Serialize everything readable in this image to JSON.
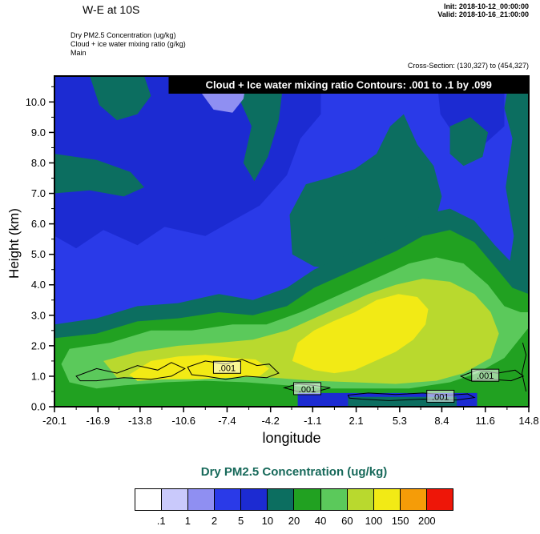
{
  "header": {
    "title": "W-E at 10S",
    "init": "Init: 2018-10-12_00:00:00",
    "valid": "Valid: 2018-10-16_21:00:00",
    "field_lines": [
      "Dry PM2.5 Concentration   (ug/kg)",
      "Cloud + ice water mixing ratio   (g/kg)",
      "Main"
    ],
    "cross_section": "Cross-Section: (130,327) to (454,327)"
  },
  "chart_data": {
    "type": "heatmap",
    "title_banner": "Cloud + Ice water mixing ratio Contours: .001 to .1 by .099",
    "fill_field": "Dry PM2.5 Concentration (ug/kg)",
    "line_field": "Cloud + Ice water mixing ratio (g/kg)",
    "xlabel": "longitude",
    "ylabel": "Height (km)",
    "xlim": [
      -20.1,
      14.8
    ],
    "ylim": [
      0,
      10.85
    ],
    "x_tick_labels": [
      "-20.1",
      "-16.9",
      "-13.8",
      "-10.6",
      "-7.4",
      "-4.2",
      "-1.1",
      "2.1",
      "5.3",
      "8.4",
      "11.6",
      "14.8"
    ],
    "y_tick_labels": [
      "0.0",
      "1.0",
      "2.0",
      "3.0",
      "4.0",
      "5.0",
      "6.0",
      "7.0",
      "8.0",
      "9.0",
      "10.0"
    ],
    "fill_levels": [
      0.1,
      1,
      2,
      5,
      10,
      20,
      40,
      60,
      100,
      150,
      200
    ],
    "palette": [
      "#ffffff",
      "#c9c9fb",
      "#8f8ff2",
      "#2a3ae8",
      "#1c2bd2",
      "#0c6e60",
      "#21a121",
      "#5bc95b",
      "#b9d92e",
      "#f2ea15",
      "#f59c08",
      "#ee1608"
    ],
    "background_ci": 3,
    "line_contour_levels": [
      0.001,
      0.1
    ],
    "contour_label": ".001",
    "contour_label_positions": [
      [
        -7.4,
        1.28
      ],
      [
        -1.5,
        0.58
      ],
      [
        8.3,
        0.33
      ],
      [
        11.6,
        1.02
      ]
    ],
    "banner_start_lon": -11.7,
    "regions": [
      {
        "ci": 4,
        "pts": [
          [
            -20.1,
            10.85
          ],
          [
            -0.5,
            10.85
          ],
          [
            -0.5,
            9.6
          ],
          [
            -2,
            8.8
          ],
          [
            -3,
            7.6
          ],
          [
            -5,
            6.6
          ],
          [
            -7,
            6.1
          ],
          [
            -9,
            5.6
          ],
          [
            -12,
            5.9
          ],
          [
            -14,
            5.3
          ],
          [
            -16.5,
            5.8
          ],
          [
            -18.5,
            5.2
          ],
          [
            -20.1,
            5.6
          ]
        ]
      },
      {
        "ci": 4,
        "pts": [
          [
            8,
            10.85
          ],
          [
            13,
            10.85
          ],
          [
            13,
            9.2
          ],
          [
            11.5,
            8.6
          ],
          [
            9.5,
            8.8
          ],
          [
            8.3,
            9.6
          ]
        ]
      },
      {
        "ci": 5,
        "pts": [
          [
            -17.5,
            10.85
          ],
          [
            -13.5,
            10.85
          ],
          [
            -13,
            10.2
          ],
          [
            -14,
            9.6
          ],
          [
            -15.5,
            9.4
          ],
          [
            -16.8,
            9.9
          ]
        ]
      },
      {
        "ci": 5,
        "pts": [
          [
            -20.1,
            8.3
          ],
          [
            -17,
            8.1
          ],
          [
            -14.5,
            7.7
          ],
          [
            -13.5,
            7.2
          ],
          [
            -15,
            6.9
          ],
          [
            -17.5,
            7.1
          ],
          [
            -20.1,
            7.0
          ]
        ]
      },
      {
        "ci": 5,
        "pts": [
          [
            -6.2,
            10.85
          ],
          [
            -3.2,
            10.85
          ],
          [
            -3.6,
            9.4
          ],
          [
            -4.4,
            8.2
          ],
          [
            -5.4,
            7.4
          ],
          [
            -6.2,
            8.0
          ],
          [
            -5.6,
            9.2
          ],
          [
            -6.4,
            10.0
          ]
        ]
      },
      {
        "ci": 5,
        "pts": [
          [
            -2.6,
            5.0
          ],
          [
            -1,
            4.6
          ],
          [
            1,
            4.5
          ],
          [
            3,
            4.8
          ],
          [
            5,
            5.2
          ],
          [
            6.5,
            5.3
          ],
          [
            7.8,
            5.9
          ],
          [
            8.4,
            6.9
          ],
          [
            7.8,
            7.9
          ],
          [
            6.6,
            8.6
          ],
          [
            5.6,
            9.6
          ],
          [
            4.6,
            9.2
          ],
          [
            3.6,
            8.3
          ],
          [
            2,
            7.8
          ],
          [
            0,
            7.5
          ],
          [
            -1.6,
            7.3
          ],
          [
            -2.8,
            6.3
          ]
        ]
      },
      {
        "ci": 5,
        "pts": [
          [
            9,
            9.2
          ],
          [
            10.5,
            9.5
          ],
          [
            11.8,
            9.0
          ],
          [
            11.4,
            8.2
          ],
          [
            10,
            7.9
          ],
          [
            9.0,
            8.3
          ]
        ]
      },
      {
        "ci": 5,
        "pts": [
          [
            13.4,
            10.85
          ],
          [
            14.8,
            10.85
          ],
          [
            14.8,
            2.8
          ],
          [
            13.6,
            3.0
          ],
          [
            13.2,
            4.2
          ],
          [
            13.7,
            5.6
          ],
          [
            13.1,
            7.2
          ],
          [
            13.6,
            8.8
          ],
          [
            13.0,
            9.8
          ]
        ]
      },
      {
        "ci": 5,
        "pts": [
          [
            -20.1,
            2.7
          ],
          [
            -17,
            2.9
          ],
          [
            -14,
            3.3
          ],
          [
            -11,
            3.4
          ],
          [
            -8,
            3.7
          ],
          [
            -5.5,
            3.5
          ],
          [
            -3,
            3.9
          ],
          [
            -1,
            4.5
          ],
          [
            1,
            4.9
          ],
          [
            3,
            5.3
          ],
          [
            5,
            5.7
          ],
          [
            7,
            6.3
          ],
          [
            9,
            6.5
          ],
          [
            10.8,
            6.1
          ],
          [
            12.3,
            5.3
          ],
          [
            13.6,
            4.7
          ],
          [
            14.8,
            4.5
          ],
          [
            14.8,
            0
          ],
          [
            -20.1,
            0
          ]
        ]
      },
      {
        "ci": 6,
        "pts": [
          [
            -20.1,
            2.25
          ],
          [
            -17,
            2.4
          ],
          [
            -14,
            2.8
          ],
          [
            -11,
            2.9
          ],
          [
            -8,
            3.1
          ],
          [
            -5.5,
            3.0
          ],
          [
            -3,
            3.3
          ],
          [
            -1,
            3.9
          ],
          [
            1,
            4.3
          ],
          [
            3,
            4.7
          ],
          [
            5,
            5.1
          ],
          [
            7,
            5.6
          ],
          [
            9,
            5.8
          ],
          [
            10.8,
            5.4
          ],
          [
            12.3,
            4.6
          ],
          [
            13.6,
            3.9
          ],
          [
            14.8,
            3.7
          ],
          [
            14.8,
            0
          ],
          [
            -20.1,
            0
          ]
        ]
      },
      {
        "ci": 7,
        "pts": [
          [
            -19,
            1.9
          ],
          [
            -16,
            2.1
          ],
          [
            -13,
            2.5
          ],
          [
            -10,
            2.5
          ],
          [
            -7,
            2.7
          ],
          [
            -4.5,
            2.7
          ],
          [
            -2,
            3.1
          ],
          [
            0,
            3.5
          ],
          [
            2,
            3.9
          ],
          [
            4,
            4.3
          ],
          [
            6,
            4.7
          ],
          [
            8,
            4.9
          ],
          [
            10,
            4.7
          ],
          [
            11.8,
            4.0
          ],
          [
            13,
            3.3
          ],
          [
            14.2,
            3.1
          ],
          [
            14.8,
            3.1
          ],
          [
            14.8,
            2.6
          ],
          [
            13,
            1.6
          ],
          [
            11,
            1.1
          ],
          [
            9,
            0.8
          ],
          [
            6,
            0.6
          ],
          [
            3,
            0.6
          ],
          [
            0,
            0.6
          ],
          [
            -3,
            0.7
          ],
          [
            -6,
            0.8
          ],
          [
            -9,
            0.85
          ],
          [
            -12,
            0.8
          ],
          [
            -15,
            0.7
          ],
          [
            -17,
            0.6
          ],
          [
            -19,
            0.8
          ],
          [
            -19.6,
            1.4
          ]
        ]
      },
      {
        "ci": 8,
        "pts": [
          [
            -16.5,
            1.5
          ],
          [
            -14,
            1.8
          ],
          [
            -11,
            2.0
          ],
          [
            -8,
            2.1
          ],
          [
            -5.5,
            2.2
          ],
          [
            -3,
            2.5
          ],
          [
            -1,
            2.9
          ],
          [
            1,
            3.3
          ],
          [
            3,
            3.7
          ],
          [
            5,
            4.0
          ],
          [
            7,
            4.2
          ],
          [
            9,
            4.1
          ],
          [
            10.8,
            3.7
          ],
          [
            12,
            3.1
          ],
          [
            12.6,
            2.4
          ],
          [
            12,
            1.6
          ],
          [
            10,
            1.1
          ],
          [
            8,
            0.85
          ],
          [
            5,
            0.75
          ],
          [
            2,
            0.8
          ],
          [
            -1,
            0.85
          ],
          [
            -4,
            0.95
          ],
          [
            -7,
            1.0
          ],
          [
            -10,
            1.05
          ],
          [
            -13,
            1.0
          ],
          [
            -15.5,
            0.95
          ]
        ]
      },
      {
        "ci": 9,
        "pts": [
          [
            -14.6,
            1.05
          ],
          [
            -13,
            1.5
          ],
          [
            -11,
            1.65
          ],
          [
            -9,
            1.7
          ],
          [
            -7,
            1.6
          ],
          [
            -5.3,
            1.55
          ],
          [
            -4.3,
            1.25
          ],
          [
            -5,
            1.0
          ],
          [
            -7,
            0.95
          ],
          [
            -9.5,
            0.9
          ],
          [
            -12,
            0.9
          ],
          [
            -14,
            0.85
          ]
        ]
      },
      {
        "ci": 9,
        "pts": [
          [
            -2.6,
            1.5
          ],
          [
            -1,
            1.2
          ],
          [
            0.5,
            1.1
          ],
          [
            2,
            1.2
          ],
          [
            3.5,
            1.5
          ],
          [
            5,
            1.8
          ],
          [
            6.3,
            2.2
          ],
          [
            7.2,
            2.7
          ],
          [
            7.4,
            3.2
          ],
          [
            6.6,
            3.6
          ],
          [
            5.2,
            3.7
          ],
          [
            3.6,
            3.5
          ],
          [
            2,
            3.1
          ],
          [
            0.4,
            2.8
          ],
          [
            -1,
            2.5
          ],
          [
            -2.2,
            2.1
          ]
        ]
      },
      {
        "ci": 4,
        "pts": [
          [
            -2.2,
            0.45
          ],
          [
            11,
            0.45
          ],
          [
            11,
            0
          ],
          [
            -2.2,
            0
          ]
        ]
      },
      {
        "ci": 5,
        "pts": [
          [
            1.5,
            0.32
          ],
          [
            9.5,
            0.32
          ],
          [
            9.5,
            0
          ],
          [
            1.5,
            0
          ]
        ]
      },
      {
        "ci": 2,
        "pts": [
          [
            -9.6,
            10.85
          ],
          [
            -5.9,
            10.85
          ],
          [
            -6.2,
            10.1
          ],
          [
            -7.0,
            9.65
          ],
          [
            -8.4,
            9.75
          ],
          [
            -9.3,
            10.3
          ]
        ]
      },
      {
        "ci": 1,
        "pts": [
          [
            -8.7,
            10.85
          ],
          [
            -7.1,
            10.85
          ],
          [
            -7.3,
            10.35
          ],
          [
            -8.3,
            10.35
          ]
        ]
      }
    ],
    "contour_lines": [
      {
        "closed": true,
        "pts": [
          [
            -18.5,
            1.0
          ],
          [
            -17,
            1.25
          ],
          [
            -15.5,
            1.1
          ],
          [
            -14,
            1.35
          ],
          [
            -12.5,
            1.2
          ],
          [
            -11.5,
            1.45
          ],
          [
            -10.5,
            1.25
          ],
          [
            -11.5,
            1.0
          ],
          [
            -13,
            0.9
          ],
          [
            -15,
            0.95
          ],
          [
            -17,
            0.85
          ],
          [
            -18.2,
            0.85
          ]
        ]
      },
      {
        "closed": true,
        "pts": [
          [
            -10.3,
            1.3
          ],
          [
            -9,
            1.5
          ],
          [
            -7.5,
            1.4
          ],
          [
            -6.3,
            1.55
          ],
          [
            -5.2,
            1.35
          ],
          [
            -4.3,
            1.4
          ],
          [
            -3.6,
            1.1
          ],
          [
            -4.5,
            0.95
          ],
          [
            -6,
            1.0
          ],
          [
            -7.5,
            0.9
          ],
          [
            -9,
            1.0
          ],
          [
            -10,
            1.05
          ]
        ]
      },
      {
        "closed": true,
        "pts": [
          [
            -3.2,
            0.62
          ],
          [
            -2.2,
            0.75
          ],
          [
            -1,
            0.7
          ],
          [
            0.2,
            0.62
          ],
          [
            -0.8,
            0.5
          ],
          [
            -2.2,
            0.5
          ]
        ]
      },
      {
        "closed": true,
        "pts": [
          [
            1.5,
            0.38
          ],
          [
            3,
            0.45
          ],
          [
            5,
            0.4
          ],
          [
            7,
            0.45
          ],
          [
            9,
            0.38
          ],
          [
            10.3,
            0.42
          ],
          [
            10.8,
            0.3
          ],
          [
            9.5,
            0.22
          ],
          [
            7,
            0.25
          ],
          [
            4.5,
            0.2
          ],
          [
            2.5,
            0.25
          ],
          [
            1.6,
            0.28
          ]
        ]
      },
      {
        "closed": true,
        "pts": [
          [
            9.8,
            1.0
          ],
          [
            11,
            1.2
          ],
          [
            12.5,
            1.1
          ],
          [
            13.8,
            1.2
          ],
          [
            14.4,
            1.0
          ],
          [
            13.5,
            0.85
          ],
          [
            12,
            0.9
          ],
          [
            10.5,
            0.85
          ]
        ]
      },
      {
        "closed": false,
        "pts": [
          [
            14.6,
            0.5
          ],
          [
            14.3,
            1.1
          ],
          [
            14.6,
            1.7
          ],
          [
            14.35,
            2.1
          ]
        ]
      }
    ]
  },
  "colorbar": {
    "title": "Dry PM2.5 Concentration  (ug/kg)",
    "labels": [
      ".1",
      "1",
      "2",
      "5",
      "10",
      "20",
      "40",
      "60",
      "100",
      "150",
      "200"
    ],
    "colors": [
      "#ffffff",
      "#c9c9fb",
      "#8f8ff2",
      "#2a3ae8",
      "#1c2bd2",
      "#0c6e60",
      "#21a121",
      "#5bc95b",
      "#b9d92e",
      "#f2ea15",
      "#f59c08",
      "#ee1608"
    ]
  }
}
